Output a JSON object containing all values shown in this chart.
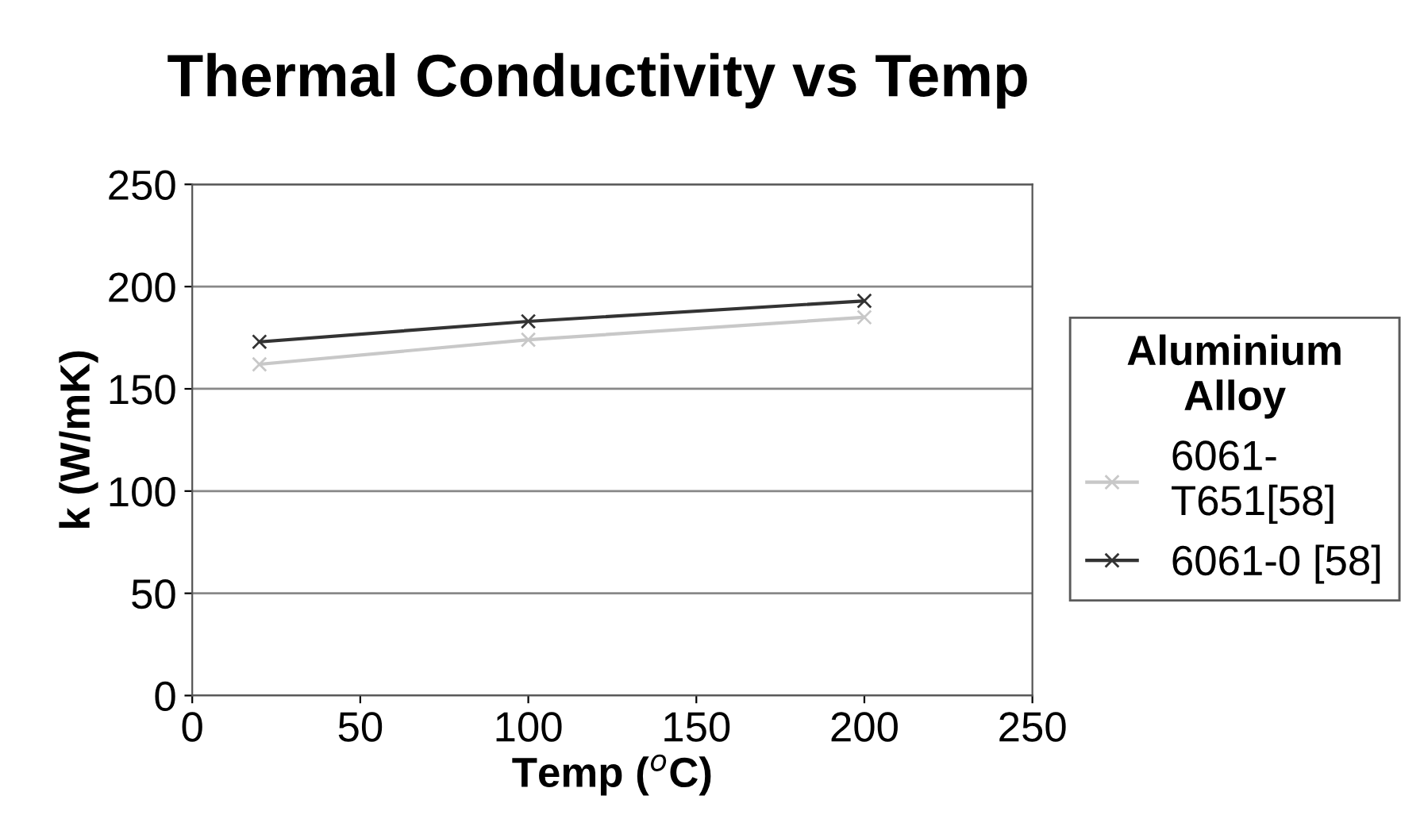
{
  "chart_data": {
    "type": "line",
    "title": "Thermal Conductivity vs Temp",
    "xlabel": "Temp ($^{o}$C)",
    "ylabel": "k (W/mK)",
    "legend_title": "Aluminium\nAlloy",
    "x": [
      20,
      100,
      200
    ],
    "series": [
      {
        "name": "6061-\nT651[58]",
        "color": "#c8c8c8",
        "values": [
          162,
          174,
          185
        ]
      },
      {
        "name": "6061-0 [58]",
        "color": "#333333",
        "values": [
          173,
          183,
          193
        ]
      }
    ],
    "xlim": [
      0,
      250
    ],
    "xticks": [
      0,
      50,
      100,
      150,
      200,
      250
    ],
    "ylim": [
      0,
      250
    ],
    "yticks": [
      0,
      50,
      100,
      150,
      200,
      250
    ],
    "grid": "y",
    "legend": "right",
    "marker": "cross",
    "line_style": "solid"
  }
}
